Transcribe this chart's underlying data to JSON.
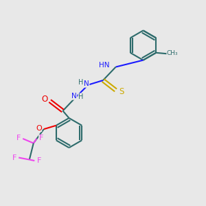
{
  "background_color": "#e8e8e8",
  "bond_color": "#2d6b6b",
  "bond_width": 1.5,
  "atom_colors": {
    "N": "#1a1aff",
    "O": "#ee0000",
    "S": "#ccaa00",
    "F": "#ee44ee",
    "C": "#2d6b6b",
    "H": "#2d6b6b"
  },
  "figsize": [
    3.0,
    3.0
  ],
  "dpi": 100
}
